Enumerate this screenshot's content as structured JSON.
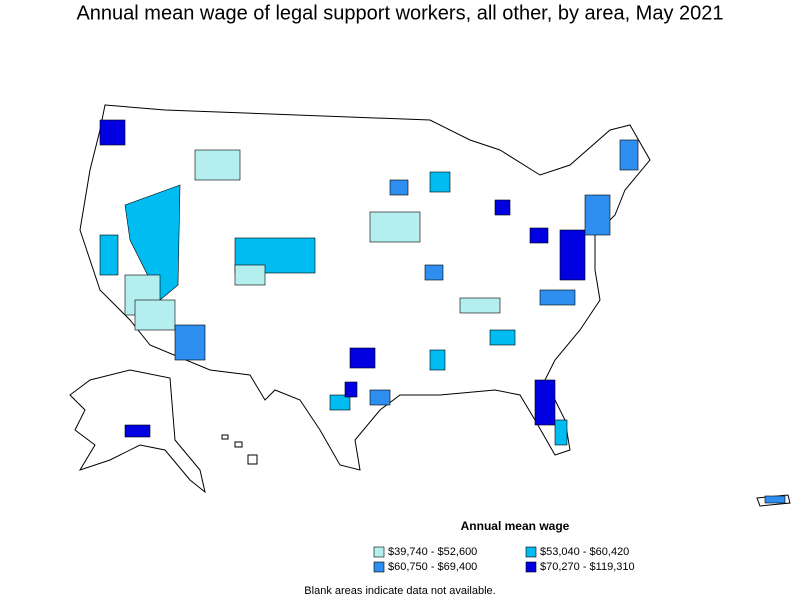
{
  "title": "Annual mean wage of legal support workers, all other, by area, May 2021",
  "legend": {
    "title": "Annual mean wage",
    "items": [
      {
        "label": "$39,740 - $52,600",
        "color": "#b4eeee"
      },
      {
        "label": "$53,040 - $60,420",
        "color": "#00bcf0"
      },
      {
        "label": "$60,750 - $69,400",
        "color": "#2e8ff0"
      },
      {
        "label": "$70,270 - $119,310",
        "color": "#0000e0"
      }
    ]
  },
  "note": "Blank areas indicate data not available."
}
